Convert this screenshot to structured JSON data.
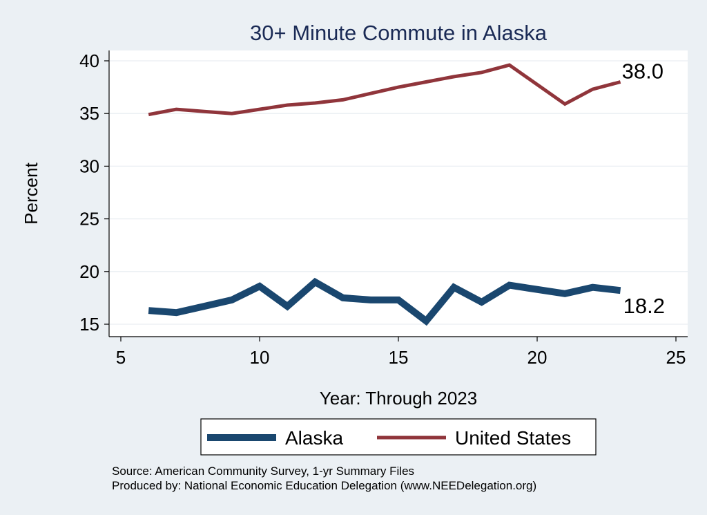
{
  "chart_data": {
    "type": "line",
    "title": "30+ Minute Commute in Alaska",
    "xlabel": "Year: Through 2023",
    "ylabel": "Percent",
    "xlim": [
      5,
      25
    ],
    "ylim": [
      15,
      40
    ],
    "xticks": [
      5,
      10,
      15,
      20,
      25
    ],
    "yticks": [
      15,
      20,
      25,
      30,
      35,
      40
    ],
    "grid": true,
    "legend_position": "bottom",
    "series": [
      {
        "name": "Alaska",
        "color": "#1a476f",
        "x": [
          6,
          7,
          8,
          9,
          10,
          11,
          12,
          13,
          14,
          15,
          16,
          17,
          18,
          19,
          21,
          22,
          23
        ],
        "y": [
          16.3,
          16.1,
          16.7,
          17.3,
          18.6,
          16.7,
          19.0,
          17.5,
          17.3,
          17.3,
          15.3,
          18.5,
          17.1,
          18.7,
          17.9,
          18.5,
          18.2
        ],
        "end_label": "18.2"
      },
      {
        "name": "United States",
        "color": "#90353b",
        "x": [
          6,
          7,
          8,
          9,
          10,
          11,
          12,
          13,
          14,
          15,
          16,
          17,
          18,
          19,
          21,
          22,
          23
        ],
        "y": [
          34.9,
          35.4,
          35.2,
          35.0,
          35.4,
          35.8,
          36.0,
          36.3,
          36.9,
          37.5,
          38.0,
          38.5,
          38.9,
          39.6,
          35.9,
          37.3,
          38.0
        ],
        "end_label": "38.0"
      }
    ]
  },
  "notes": {
    "source": "Source: American Community Survey, 1-yr Summary Files",
    "produced_by": "Produced by: National Economic Education Delegation (www.NEEDelegation.org)"
  }
}
